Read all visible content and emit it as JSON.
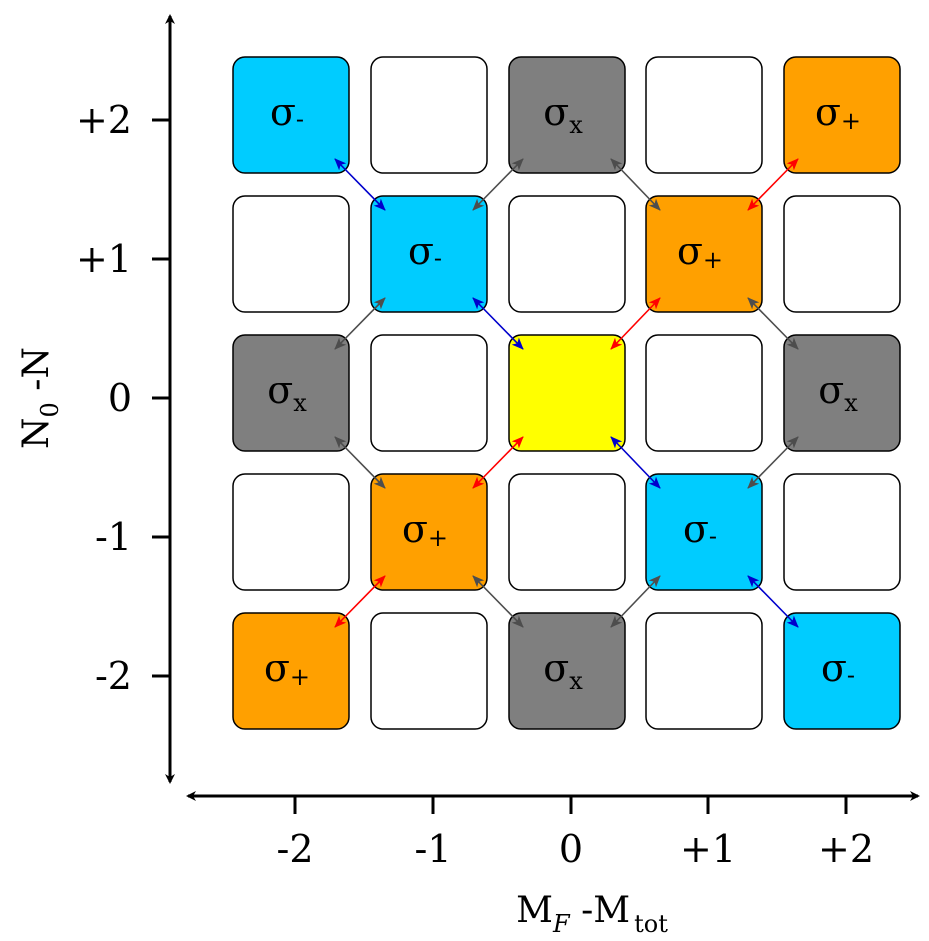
{
  "colors": {
    "sigma_minus": "#00ccff",
    "sigma_plus": "#ffa000",
    "sigma_x": "#7f7f7f",
    "center": "#ffff00",
    "empty": "#ffffff",
    "arrow_red": "#ff0000",
    "arrow_blue": "#0000cc",
    "arrow_gray": "#4d4d4d"
  },
  "x_axis": {
    "title_main": "M",
    "title_sub": "F",
    "title_mid": " -M",
    "title_sub2": "tot",
    "ticks": [
      "-2",
      "-1",
      "0",
      "+1",
      "+2"
    ]
  },
  "y_axis": {
    "title_main": "N",
    "title_sub": "0",
    "title_rest": " -N",
    "ticks": [
      "+2",
      "+1",
      "0",
      "-1",
      "-2"
    ]
  },
  "sigma": "σ",
  "cells": [
    {
      "row": 0,
      "col": 0,
      "type": "sigma_minus",
      "sub": "-"
    },
    {
      "row": 0,
      "col": 1,
      "type": "empty"
    },
    {
      "row": 0,
      "col": 2,
      "type": "sigma_x",
      "sub": "x"
    },
    {
      "row": 0,
      "col": 3,
      "type": "empty"
    },
    {
      "row": 0,
      "col": 4,
      "type": "sigma_plus",
      "sub": "+"
    },
    {
      "row": 1,
      "col": 0,
      "type": "empty"
    },
    {
      "row": 1,
      "col": 1,
      "type": "sigma_minus",
      "sub": "-"
    },
    {
      "row": 1,
      "col": 2,
      "type": "empty"
    },
    {
      "row": 1,
      "col": 3,
      "type": "sigma_plus",
      "sub": "+"
    },
    {
      "row": 1,
      "col": 4,
      "type": "empty"
    },
    {
      "row": 2,
      "col": 0,
      "type": "sigma_x",
      "sub": "x"
    },
    {
      "row": 2,
      "col": 1,
      "type": "empty"
    },
    {
      "row": 2,
      "col": 2,
      "type": "center"
    },
    {
      "row": 2,
      "col": 3,
      "type": "empty"
    },
    {
      "row": 2,
      "col": 4,
      "type": "sigma_x",
      "sub": "x"
    },
    {
      "row": 3,
      "col": 0,
      "type": "empty"
    },
    {
      "row": 3,
      "col": 1,
      "type": "sigma_plus",
      "sub": "+"
    },
    {
      "row": 3,
      "col": 2,
      "type": "empty"
    },
    {
      "row": 3,
      "col": 3,
      "type": "sigma_minus",
      "sub": "-"
    },
    {
      "row": 3,
      "col": 4,
      "type": "empty"
    },
    {
      "row": 4,
      "col": 0,
      "type": "sigma_plus",
      "sub": "+"
    },
    {
      "row": 4,
      "col": 1,
      "type": "empty"
    },
    {
      "row": 4,
      "col": 2,
      "type": "sigma_x",
      "sub": "x"
    },
    {
      "row": 4,
      "col": 3,
      "type": "empty"
    },
    {
      "row": 4,
      "col": 4,
      "type": "sigma_minus",
      "sub": "-"
    }
  ],
  "arrows": [
    {
      "from": [
        2,
        2
      ],
      "to": [
        1,
        3
      ],
      "color": "arrow_red"
    },
    {
      "from": [
        1,
        3
      ],
      "to": [
        0,
        4
      ],
      "color": "arrow_red"
    },
    {
      "from": [
        2,
        2
      ],
      "to": [
        3,
        1
      ],
      "color": "arrow_red"
    },
    {
      "from": [
        3,
        1
      ],
      "to": [
        4,
        0
      ],
      "color": "arrow_red"
    },
    {
      "from": [
        2,
        2
      ],
      "to": [
        1,
        1
      ],
      "color": "arrow_blue"
    },
    {
      "from": [
        1,
        1
      ],
      "to": [
        0,
        0
      ],
      "color": "arrow_blue"
    },
    {
      "from": [
        2,
        2
      ],
      "to": [
        3,
        3
      ],
      "color": "arrow_blue"
    },
    {
      "from": [
        3,
        3
      ],
      "to": [
        4,
        4
      ],
      "color": "arrow_blue"
    },
    {
      "from": [
        1,
        1
      ],
      "to": [
        0,
        2
      ],
      "color": "arrow_gray"
    },
    {
      "from": [
        1,
        3
      ],
      "to": [
        0,
        2
      ],
      "color": "arrow_gray"
    },
    {
      "from": [
        1,
        1
      ],
      "to": [
        2,
        0
      ],
      "color": "arrow_gray"
    },
    {
      "from": [
        3,
        1
      ],
      "to": [
        2,
        0
      ],
      "color": "arrow_gray"
    },
    {
      "from": [
        1,
        3
      ],
      "to": [
        2,
        4
      ],
      "color": "arrow_gray"
    },
    {
      "from": [
        3,
        3
      ],
      "to": [
        2,
        4
      ],
      "color": "arrow_gray"
    },
    {
      "from": [
        3,
        1
      ],
      "to": [
        4,
        2
      ],
      "color": "arrow_gray"
    },
    {
      "from": [
        3,
        3
      ],
      "to": [
        4,
        2
      ],
      "color": "arrow_gray"
    }
  ]
}
